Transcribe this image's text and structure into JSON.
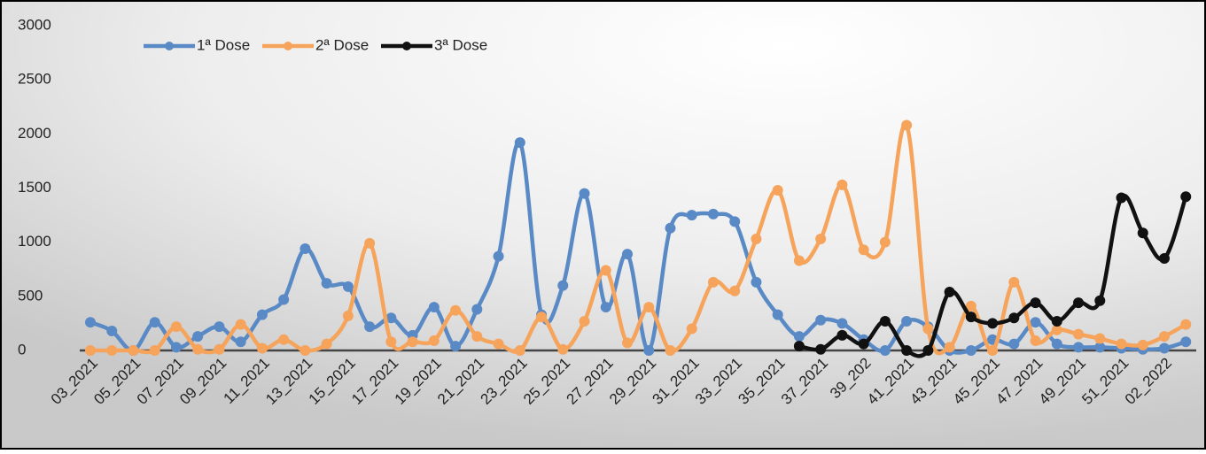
{
  "chart_data": {
    "type": "line",
    "categories": [
      "03_2021",
      null,
      "05_2021",
      null,
      "07_2021",
      null,
      "09_2021",
      null,
      "11_2021",
      null,
      "13_2021",
      null,
      "15_2021",
      null,
      "17_2021",
      null,
      "19_2021",
      null,
      "21_2021",
      null,
      "23_2021",
      null,
      "25_2021",
      null,
      "27_2021",
      null,
      "29_2021",
      null,
      "31_2021",
      null,
      "33_2021",
      null,
      "35_2021",
      null,
      "37_2021",
      null,
      "39_202",
      null,
      "41_2021",
      null,
      "43_2021",
      null,
      "45_2021",
      null,
      "47_2021",
      null,
      "49_2021",
      null,
      "51_2021",
      null,
      "02_2022",
      null
    ],
    "series": [
      {
        "name": "1ª Dose",
        "color": "#5a8ac6",
        "values": [
          260,
          180,
          0,
          260,
          30,
          130,
          220,
          80,
          330,
          470,
          940,
          620,
          590,
          220,
          300,
          140,
          400,
          40,
          380,
          870,
          1920,
          330,
          600,
          1450,
          400,
          890,
          0,
          1130,
          1250,
          1260,
          1190,
          630,
          330,
          130,
          280,
          250,
          100,
          0,
          270,
          220,
          0,
          0,
          100,
          60,
          260,
          60,
          30,
          30,
          20,
          10,
          20,
          80
        ]
      },
      {
        "name": "2ª Dose",
        "color": "#f6a35b",
        "values": [
          0,
          0,
          0,
          0,
          220,
          10,
          10,
          240,
          20,
          100,
          0,
          60,
          320,
          990,
          80,
          80,
          90,
          370,
          130,
          60,
          0,
          310,
          10,
          270,
          740,
          70,
          400,
          0,
          200,
          630,
          550,
          1030,
          1480,
          830,
          1030,
          1530,
          930,
          1000,
          2080,
          200,
          30,
          410,
          0,
          630,
          90,
          190,
          150,
          110,
          60,
          50,
          130,
          240
        ]
      },
      {
        "name": "3ª Dose",
        "color": "#111111",
        "values": [
          null,
          null,
          null,
          null,
          null,
          null,
          null,
          null,
          null,
          null,
          null,
          null,
          null,
          null,
          null,
          null,
          null,
          null,
          null,
          null,
          null,
          null,
          null,
          null,
          null,
          null,
          null,
          null,
          null,
          null,
          null,
          null,
          null,
          40,
          10,
          140,
          60,
          270,
          0,
          0,
          540,
          310,
          250,
          300,
          440,
          270,
          440,
          460,
          1410,
          1085,
          850,
          1420
        ]
      }
    ],
    "ylim": [
      0,
      3000
    ],
    "yticks": [
      0,
      500,
      1000,
      1500,
      2000,
      2500,
      3000
    ],
    "grid": false,
    "legend": "top-left"
  }
}
